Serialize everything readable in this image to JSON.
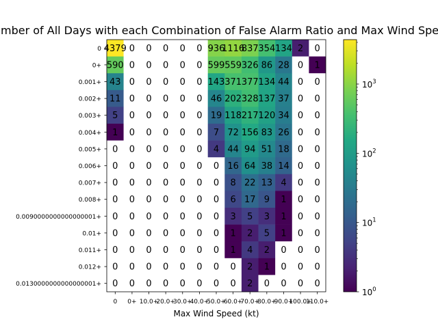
{
  "chart_data": {
    "type": "heatmap",
    "title": "Number of All Days with each Combination of False Alarm Ratio and Max Wind Speed",
    "xlabel": "Max Wind Speed (kt)",
    "ylabel": "",
    "x_tick_labels": [
      "0",
      "0+",
      "10.0+",
      "20.0+",
      "30.0+",
      "40.0+",
      "50.0+",
      "60.0+",
      "70.0+",
      "80.0+",
      "90.0+",
      "100.0+",
      "110.0+"
    ],
    "y_tick_labels": [
      "0",
      "0+",
      "0.001+",
      "0.002+",
      "0.003+",
      "0.004+",
      "0.005+",
      "0.006+",
      "0.007+",
      "0.008+",
      "0.0090000000000000001+",
      "0.01+",
      "0.011+",
      "0.012+",
      "0.0130000000000000001+"
    ],
    "values": [
      [
        4379,
        0,
        0,
        0,
        0,
        0,
        936,
        1116,
        837,
        354,
        134,
        2,
        0
      ],
      [
        590,
        0,
        0,
        0,
        0,
        0,
        599,
        559,
        326,
        86,
        28,
        0,
        1
      ],
      [
        43,
        0,
        0,
        0,
        0,
        0,
        143,
        371,
        377,
        134,
        44,
        0,
        0
      ],
      [
        11,
        0,
        0,
        0,
        0,
        0,
        46,
        202,
        328,
        137,
        37,
        0,
        0
      ],
      [
        5,
        0,
        0,
        0,
        0,
        0,
        19,
        118,
        217,
        120,
        34,
        0,
        0
      ],
      [
        1,
        0,
        0,
        0,
        0,
        0,
        7,
        72,
        156,
        83,
        26,
        0,
        0
      ],
      [
        0,
        0,
        0,
        0,
        0,
        0,
        4,
        44,
        94,
        51,
        18,
        0,
        0
      ],
      [
        0,
        0,
        0,
        0,
        0,
        0,
        0,
        16,
        64,
        38,
        14,
        0,
        0
      ],
      [
        0,
        0,
        0,
        0,
        0,
        0,
        0,
        8,
        22,
        13,
        4,
        0,
        0
      ],
      [
        0,
        0,
        0,
        0,
        0,
        0,
        0,
        6,
        17,
        9,
        1,
        0,
        0
      ],
      [
        0,
        0,
        0,
        0,
        0,
        0,
        0,
        3,
        5,
        3,
        1,
        0,
        0
      ],
      [
        0,
        0,
        0,
        0,
        0,
        0,
        0,
        1,
        2,
        5,
        1,
        0,
        0
      ],
      [
        0,
        0,
        0,
        0,
        0,
        0,
        0,
        1,
        4,
        2,
        0,
        0,
        0
      ],
      [
        0,
        0,
        0,
        0,
        0,
        0,
        0,
        0,
        2,
        1,
        0,
        0,
        0
      ],
      [
        0,
        0,
        0,
        0,
        0,
        0,
        0,
        0,
        2,
        0,
        0,
        0,
        0
      ]
    ],
    "color_scale": "log",
    "colormap": "viridis",
    "zero_color": "#ffffff",
    "colorbar_range": [
      1,
      4379
    ],
    "colorbar_ticks": [
      {
        "value": 1,
        "base": "10",
        "exp": "0"
      },
      {
        "value": 10,
        "base": "10",
        "exp": "1"
      },
      {
        "value": 100,
        "base": "10",
        "exp": "2"
      },
      {
        "value": 1000,
        "base": "10",
        "exp": "3"
      }
    ],
    "grid": false
  }
}
